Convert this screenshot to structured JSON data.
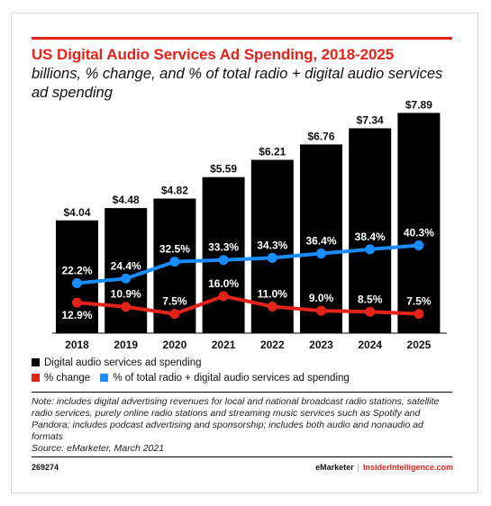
{
  "header": {
    "title": "US Digital Audio Services Ad Spending, 2018-2025",
    "subtitle": "billions, % change, and % of total radio + digital audio services ad spending"
  },
  "colors": {
    "bar": "#000000",
    "pct_change": "#e2231a",
    "pct_total": "#1a8cff",
    "brand_red": "#e2231a"
  },
  "chart_data": {
    "type": "bar",
    "title": "US Digital Audio Services Ad Spending, 2018-2025",
    "subtitle": "billions, % change, and % of total radio + digital audio services ad spending",
    "categories": [
      "2018",
      "2019",
      "2020",
      "2021",
      "2022",
      "2023",
      "2024",
      "2025"
    ],
    "series": [
      {
        "name": "Digital audio services ad spending",
        "type": "bar",
        "values": [
          4.04,
          4.48,
          4.82,
          5.59,
          6.21,
          6.76,
          7.34,
          7.89
        ],
        "labels": [
          "$4.04",
          "$4.48",
          "$4.82",
          "$5.59",
          "$6.21",
          "$6.76",
          "$7.34",
          "$7.89"
        ]
      },
      {
        "name": "% change",
        "type": "line",
        "values": [
          12.9,
          10.9,
          7.5,
          16.0,
          11.0,
          9.0,
          8.5,
          7.5
        ],
        "labels": [
          "12.9%",
          "10.9%",
          "7.5%",
          "16.0%",
          "11.0%",
          "9.0%",
          "8.5%",
          "7.5%"
        ]
      },
      {
        "name": "% of total radio + digital audio services ad spending",
        "type": "line",
        "values": [
          22.2,
          24.4,
          32.5,
          33.3,
          34.3,
          36.4,
          38.4,
          40.3
        ],
        "labels": [
          "22.2%",
          "24.4%",
          "32.5%",
          "33.3%",
          "34.3%",
          "36.4%",
          "38.4%",
          "40.3%"
        ]
      }
    ],
    "legend": {
      "position": "bottom",
      "entries": [
        "Digital audio services ad spending",
        "% change",
        "% of total radio + digital audio services ad spending"
      ]
    }
  },
  "note": {
    "text": "Note: includes digital advertising revenues for local and national broadcast radio stations, satellite radio services, purely online radio stations and streaming music services such as Spotify and Pandora; includes podcast advertising and sponsorship; includes both audio and nonaudio ad formats",
    "source": "Source: eMarketer, March 2021"
  },
  "footer": {
    "id": "269274",
    "brand": "eMarketer",
    "separator": "|",
    "brand2": "InsiderIntelligence.com"
  }
}
